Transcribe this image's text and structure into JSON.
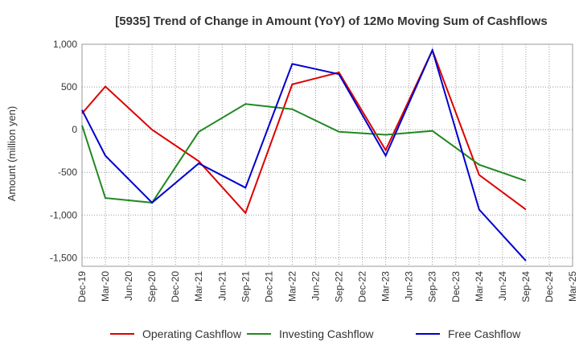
{
  "chart_data": {
    "type": "line",
    "title": "[5935]  Trend of Change in Amount (YoY) of 12Mo Moving Sum of Cashflows",
    "xlabel": "",
    "ylabel": "Amount (million yen)",
    "ylim": [
      -1600,
      1000
    ],
    "yticks": [
      1000,
      500,
      0,
      -500,
      -1000,
      -1500
    ],
    "ytick_labels": [
      "1,000",
      "500",
      "0",
      "-500",
      "-1,000",
      "-1,500"
    ],
    "categories": [
      "Dec-19",
      "Mar-20",
      "Jun-20",
      "Sep-20",
      "Dec-20",
      "Mar-21",
      "Jun-21",
      "Sep-21",
      "Dec-21",
      "Mar-22",
      "Jun-22",
      "Sep-22",
      "Dec-22",
      "Mar-23",
      "Jun-23",
      "Sep-23",
      "Dec-23",
      "Mar-24",
      "Jun-24",
      "Sep-24",
      "Dec-24",
      "Mar-25"
    ],
    "grid": true,
    "legend_position": "bottom",
    "series": [
      {
        "name": "Operating Cashflow",
        "color": "#dd0000",
        "values": [
          190,
          505,
          null,
          0,
          null,
          -370,
          null,
          -975,
          null,
          530,
          null,
          670,
          null,
          -240,
          null,
          930,
          null,
          -530,
          null,
          -935,
          null,
          null
        ]
      },
      {
        "name": "Investing Cashflow",
        "color": "#228822",
        "values": [
          50,
          -800,
          null,
          -855,
          null,
          -25,
          null,
          300,
          null,
          240,
          null,
          -25,
          null,
          -60,
          null,
          -15,
          null,
          -410,
          null,
          -600,
          null,
          null
        ]
      },
      {
        "name": "Free Cashflow",
        "color": "#0000cc",
        "values": [
          230,
          -305,
          null,
          -855,
          null,
          -395,
          null,
          -680,
          null,
          770,
          null,
          650,
          null,
          -305,
          null,
          930,
          null,
          -935,
          null,
          -1535,
          null,
          null
        ]
      }
    ]
  }
}
